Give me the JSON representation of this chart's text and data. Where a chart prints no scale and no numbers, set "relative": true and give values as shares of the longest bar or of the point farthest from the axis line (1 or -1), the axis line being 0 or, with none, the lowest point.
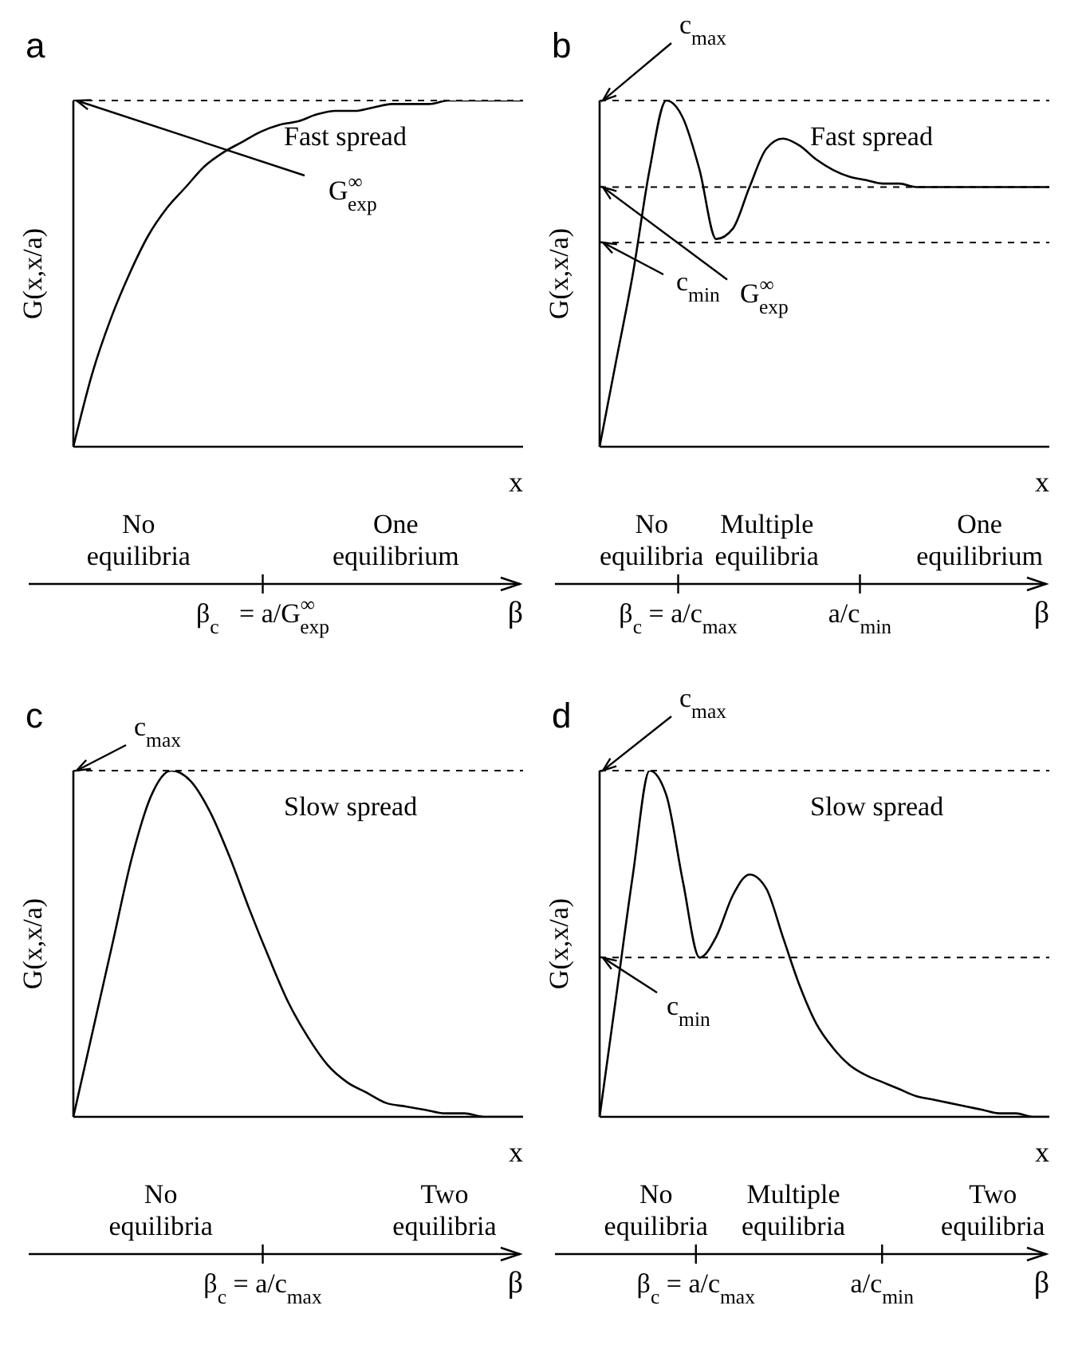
{
  "chart_data": [
    {
      "type": "line",
      "title": "a",
      "xlabel": "x",
      "ylabel": "G(x,x/a)",
      "relative": true,
      "categories": [
        null,
        null,
        null,
        null,
        null,
        null,
        null,
        null,
        null,
        null,
        null,
        null,
        null,
        null,
        null,
        null,
        null,
        null,
        null,
        null,
        null,
        null,
        null,
        null,
        null
      ],
      "series": [
        {
          "color": "#000000",
          "values": [
            0,
            0.21,
            0.37,
            0.5,
            0.61,
            0.69,
            0.75,
            0.81,
            0.85,
            0.88,
            0.91,
            0.93,
            0.94,
            0.96,
            0.97,
            0.97,
            0.98,
            0.99,
            0.99,
            0.99,
            1,
            1,
            1,
            1,
            1
          ]
        }
      ],
      "ref_lines": [
        {
          "axis": "y",
          "value": 1,
          "label": "G$^{∞}$$_{exp}$",
          "line_style": "dashed"
        }
      ],
      "annotations": [
        "Fast spread",
        "No equilibria",
        "One equilibrium",
        "β$_{c}$   = a/G$^{∞}$$_{exp}$",
        "β"
      ]
    },
    {
      "type": "line",
      "title": "b",
      "xlabel": "x",
      "ylabel": "G(x,x/a)",
      "relative": true,
      "categories": [
        null,
        null,
        null,
        null,
        null,
        null,
        null,
        null,
        null,
        null,
        null,
        null,
        null,
        null,
        null,
        null,
        null,
        null,
        null,
        null,
        null,
        null,
        null,
        null,
        null,
        null,
        null,
        null
      ],
      "series": [
        {
          "color": "#000000",
          "values": [
            0,
            0.25,
            0.5,
            0.8,
            1,
            0.95,
            0.8,
            0.6,
            0.63,
            0.75,
            0.86,
            0.89,
            0.87,
            0.83,
            0.8,
            0.78,
            0.77,
            0.76,
            0.76,
            0.75,
            0.75,
            0.75,
            0.75,
            0.75,
            0.75,
            0.75,
            0.75,
            0.75
          ]
        }
      ],
      "ref_lines": [
        {
          "axis": "y",
          "value": 1,
          "label": "c$_{max}$",
          "line_style": "dashed"
        },
        {
          "axis": "y",
          "value": 0.75,
          "label": "G$^{∞}$$_{exp}$",
          "line_style": "dashed"
        },
        {
          "axis": "y",
          "value": 0.59,
          "label": "c$_{min}$",
          "line_style": "dashed"
        }
      ],
      "annotations": [
        "Fast spread",
        "No equilibria",
        "Multiple equilibria",
        "One equilibrium",
        "β$_{c}$ = a/c$_{max}$",
        "a/c$_{min}$",
        "β"
      ]
    },
    {
      "type": "line",
      "title": "c",
      "xlabel": "x",
      "ylabel": "G(x,x/a)",
      "relative": true,
      "categories": [
        null,
        null,
        null,
        null,
        null,
        null,
        null,
        null,
        null,
        null,
        null,
        null,
        null,
        null,
        null,
        null,
        null,
        null,
        null,
        null,
        null,
        null,
        null,
        null
      ],
      "series": [
        {
          "color": "#000000",
          "values": [
            0,
            0.25,
            0.5,
            0.75,
            0.93,
            1,
            0.97,
            0.88,
            0.75,
            0.6,
            0.46,
            0.33,
            0.23,
            0.15,
            0.1,
            0.07,
            0.04,
            0.03,
            0.02,
            0.01,
            0.01,
            0,
            0,
            0
          ]
        }
      ],
      "ref_lines": [
        {
          "axis": "y",
          "value": 1,
          "label": "c$_{max}$",
          "line_style": "dashed"
        }
      ],
      "annotations": [
        "Slow spread",
        "No equilibria",
        "Two equilibria",
        "β$_{c}$ = a/c$_{max}$",
        "β"
      ]
    },
    {
      "type": "line",
      "title": "d",
      "xlabel": "x",
      "ylabel": "G(x,x/a)",
      "relative": true,
      "categories": [
        null,
        null,
        null,
        null,
        null,
        null,
        null,
        null,
        null,
        null,
        null,
        null,
        null,
        null,
        null,
        null,
        null,
        null,
        null,
        null,
        null,
        null,
        null,
        null,
        null,
        null,
        null,
        null
      ],
      "series": [
        {
          "color": "#000000",
          "values": [
            0,
            0.35,
            0.7,
            1,
            0.93,
            0.68,
            0.46,
            0.52,
            0.64,
            0.7,
            0.66,
            0.52,
            0.38,
            0.27,
            0.2,
            0.15,
            0.12,
            0.1,
            0.08,
            0.06,
            0.05,
            0.04,
            0.03,
            0.02,
            0.01,
            0.01,
            0,
            0
          ]
        }
      ],
      "ref_lines": [
        {
          "axis": "y",
          "value": 1,
          "label": "c$_{max}$",
          "line_style": "dashed"
        },
        {
          "axis": "y",
          "value": 0.46,
          "label": "c$_{min}$",
          "line_style": "dashed"
        }
      ],
      "annotations": [
        "Slow spread",
        "No equilibria",
        "Multiple equilibria",
        "Two equilibria",
        "β$_{c}$ = a/c$_{max}$",
        "a/c$_{min}$",
        "β"
      ]
    }
  ]
}
